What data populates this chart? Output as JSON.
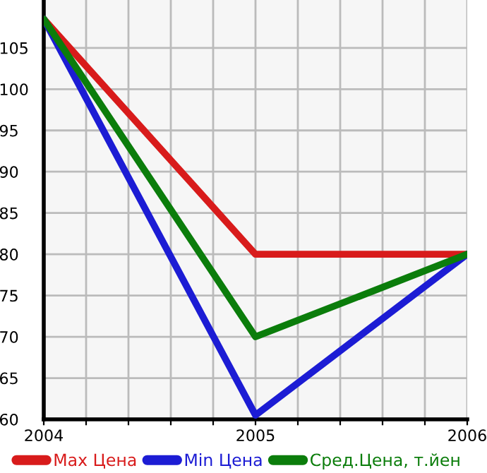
{
  "chart_data": {
    "type": "line",
    "x": [
      2004,
      2005,
      2006
    ],
    "series": [
      {
        "name": "Max Цена",
        "color": "#d81b1b",
        "values": [
          108.5,
          80,
          80
        ]
      },
      {
        "name": "Min Цена",
        "color": "#1c1cd4",
        "values": [
          108.5,
          60.5,
          80
        ]
      },
      {
        "name": "Сред.Цена, т.йен",
        "color": "#0b7d0b",
        "values": [
          108.5,
          70,
          80
        ]
      }
    ],
    "xlim": [
      2004,
      2006
    ],
    "xticks": [
      2004,
      {
        "value": 2004.2,
        "label": null
      },
      {
        "value": 2004.4,
        "label": null
      },
      {
        "value": 2004.6,
        "label": null
      },
      {
        "value": 2004.8,
        "label": null
      },
      2005,
      {
        "value": 2005.2,
        "label": null
      },
      {
        "value": 2005.4,
        "label": null
      },
      {
        "value": 2005.6,
        "label": null
      },
      {
        "value": 2005.8,
        "label": null
      },
      2006
    ],
    "ylim": [
      60,
      110.8
    ],
    "yticks": [
      60,
      65,
      70,
      75,
      80,
      85,
      90,
      95,
      100,
      105
    ],
    "grid": true,
    "legend": "bottom",
    "marker": "none",
    "line_style": "solid"
  }
}
